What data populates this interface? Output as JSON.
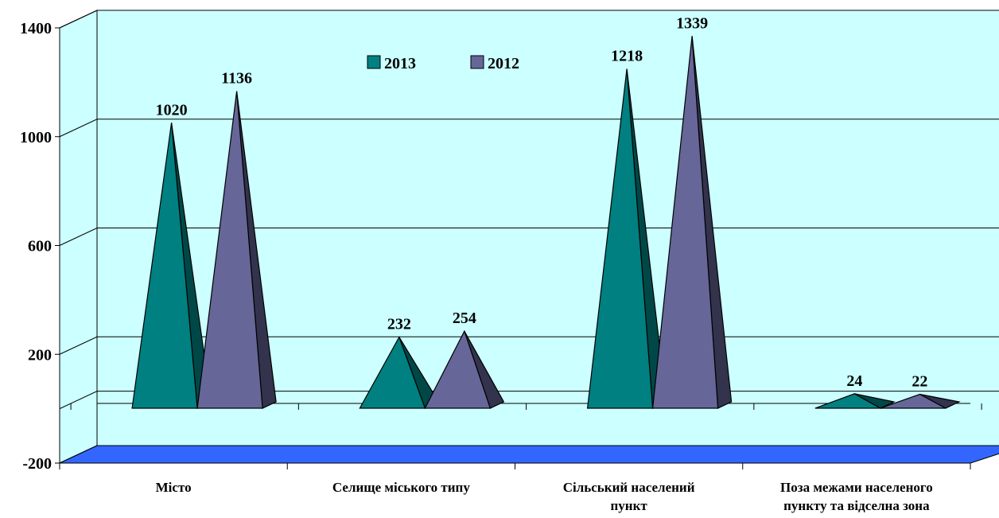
{
  "chart_data": {
    "type": "bar",
    "bar_shape": "3d-pyramid",
    "categories": [
      [
        "Місто"
      ],
      [
        "Селище міського типу"
      ],
      [
        "Сільський населений",
        "пункт"
      ],
      [
        "Поза межами населеного",
        "пункту та відселна зона"
      ]
    ],
    "series": [
      {
        "name": "2013",
        "values": [
          1020,
          232,
          1218,
          24
        ]
      },
      {
        "name": "2012",
        "values": [
          1136,
          254,
          1339,
          22
        ]
      }
    ],
    "ylim": [
      -200,
      1400
    ],
    "yticks": [
      -200,
      200,
      600,
      1000,
      1400
    ],
    "grid": true,
    "legend_position": "top-center",
    "colors": {
      "series_2013": "#008080",
      "series_2013_dark": "#004848",
      "series_2012": "#666699",
      "series_2012_dark": "#33334d",
      "wall": "#ccffff",
      "floor": "#3366ff"
    }
  }
}
